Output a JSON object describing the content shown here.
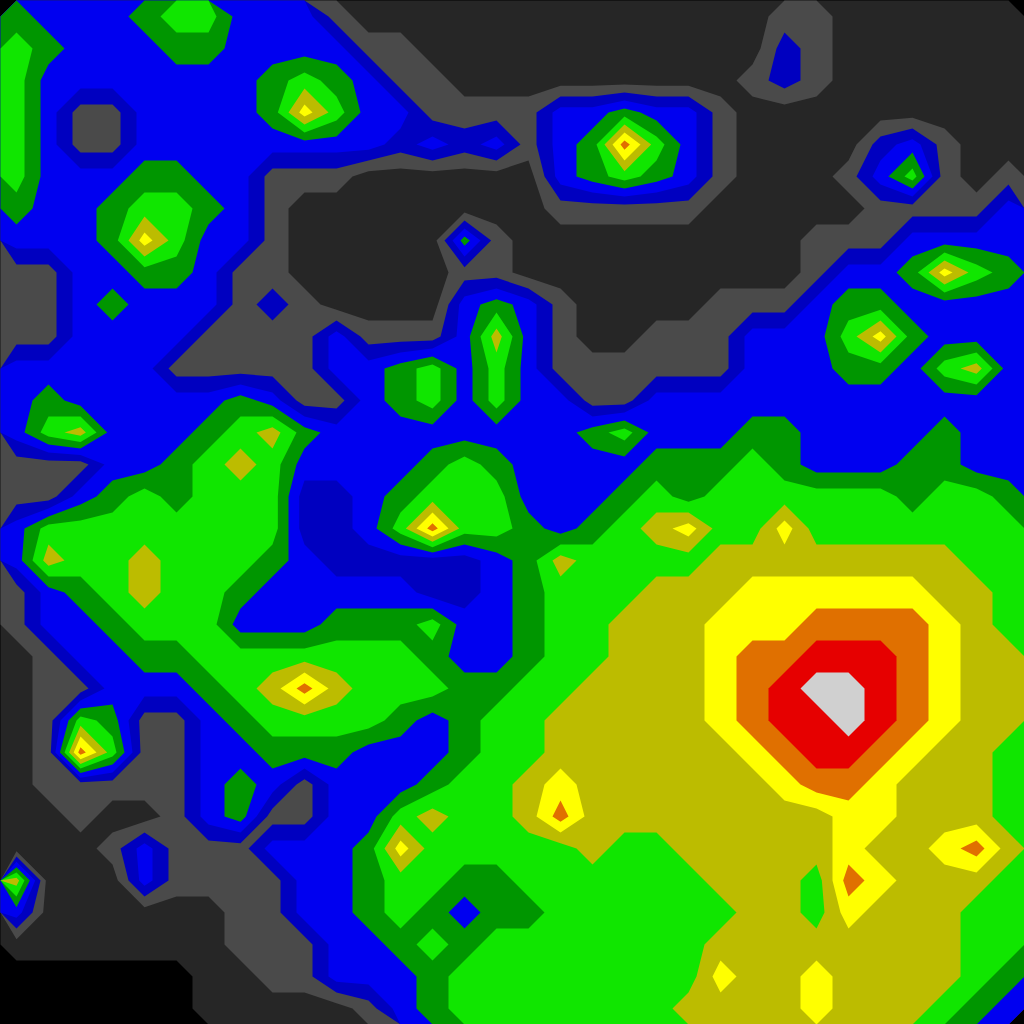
{
  "chart_data": {
    "type": "contour",
    "tick_labels": false,
    "thresholds": [
      0.5,
      1.5,
      2.5,
      3.5,
      4.5,
      5.5,
      6.5,
      7.5,
      8.5,
      9.5,
      10.5
    ],
    "colors": [
      "#000000",
      "#262626",
      "#4a4a4a",
      "#0000c0",
      "#0000f0",
      "#009600",
      "#10e600",
      "#bcbc00",
      "#ffff00",
      "#e07000",
      "#e60000",
      "#d0d0d0"
    ],
    "cells": [
      [
        5,
        4,
        4,
        4,
        5,
        6,
        6,
        4,
        4,
        4,
        2,
        1,
        1,
        1,
        1,
        1,
        1,
        1,
        1,
        1,
        1,
        1,
        1,
        1,
        2,
        2,
        1,
        1,
        1,
        1,
        1,
        1
      ],
      [
        6,
        5,
        4,
        4,
        4,
        5,
        5,
        4,
        4,
        4,
        4,
        2,
        2,
        1,
        1,
        1,
        1,
        1,
        1,
        1,
        1,
        1,
        1,
        1,
        3,
        2,
        1,
        1,
        1,
        1,
        1,
        1
      ],
      [
        6,
        4,
        4,
        4,
        4,
        4,
        4,
        4,
        5,
        6,
        5,
        4,
        2,
        2,
        1,
        1,
        1,
        1,
        1,
        1,
        1,
        1,
        1,
        2,
        3,
        2,
        1,
        1,
        1,
        1,
        1,
        1
      ],
      [
        6,
        4,
        2,
        2,
        4,
        4,
        4,
        4,
        5,
        8,
        6,
        4,
        4,
        2,
        2,
        2,
        2,
        4,
        4,
        5,
        4,
        4,
        2,
        1,
        1,
        1,
        1,
        1,
        1,
        1,
        1,
        1
      ],
      [
        6,
        4,
        2,
        2,
        4,
        4,
        4,
        4,
        4,
        4,
        4,
        4,
        3,
        4,
        3,
        4,
        2,
        4,
        5,
        9,
        6,
        4,
        2,
        1,
        1,
        1,
        1,
        3,
        4,
        2,
        1,
        1
      ],
      [
        6,
        4,
        4,
        4,
        5,
        5,
        4,
        4,
        2,
        2,
        2,
        1,
        1,
        1,
        1,
        1,
        1,
        4,
        5,
        6,
        5,
        4,
        2,
        1,
        1,
        1,
        2,
        4,
        6,
        2,
        1,
        2
      ],
      [
        5,
        4,
        4,
        5,
        6,
        6,
        5,
        4,
        2,
        1,
        1,
        1,
        1,
        1,
        1,
        1,
        1,
        2,
        2,
        2,
        2,
        2,
        1,
        1,
        1,
        1,
        1,
        2,
        2,
        2,
        2,
        4
      ],
      [
        4,
        4,
        4,
        5,
        8,
        6,
        4,
        4,
        2,
        1,
        1,
        1,
        1,
        1,
        5,
        2,
        1,
        1,
        1,
        1,
        1,
        1,
        1,
        1,
        1,
        2,
        2,
        2,
        4,
        4,
        4,
        4
      ],
      [
        2,
        2,
        4,
        4,
        5,
        5,
        4,
        2,
        2,
        1,
        1,
        1,
        1,
        1,
        2,
        2,
        1,
        1,
        1,
        1,
        1,
        1,
        1,
        1,
        1,
        2,
        4,
        4,
        5,
        8,
        6,
        5
      ],
      [
        2,
        2,
        4,
        5,
        4,
        4,
        4,
        2,
        3,
        2,
        1,
        1,
        1,
        1,
        4,
        5,
        4,
        2,
        1,
        1,
        1,
        1,
        2,
        2,
        2,
        4,
        5,
        5,
        4,
        4,
        4,
        4
      ],
      [
        2,
        2,
        4,
        4,
        4,
        4,
        2,
        2,
        2,
        2,
        4,
        2,
        2,
        2,
        4,
        7,
        4,
        2,
        1,
        1,
        2,
        2,
        2,
        4,
        4,
        4,
        6,
        8,
        5,
        4,
        4,
        4
      ],
      [
        4,
        4,
        4,
        4,
        4,
        2,
        2,
        2,
        2,
        2,
        4,
        4,
        5,
        6,
        4,
        6,
        4,
        2,
        2,
        2,
        2,
        2,
        2,
        4,
        4,
        4,
        5,
        5,
        4,
        6,
        7,
        4
      ],
      [
        4,
        5,
        4,
        4,
        4,
        4,
        4,
        5,
        4,
        2,
        2,
        4,
        5,
        6,
        4,
        6,
        4,
        4,
        2,
        2,
        4,
        4,
        4,
        4,
        4,
        4,
        4,
        4,
        4,
        4,
        4,
        4
      ],
      [
        4,
        6,
        7,
        4,
        4,
        4,
        5,
        6,
        7,
        5,
        4,
        4,
        4,
        4,
        4,
        4,
        4,
        4,
        5,
        6,
        4,
        4,
        4,
        5,
        5,
        4,
        4,
        4,
        4,
        5,
        4,
        4
      ],
      [
        2,
        2,
        2,
        4,
        4,
        5,
        6,
        7,
        6,
        4,
        4,
        4,
        4,
        5,
        6,
        5,
        4,
        4,
        4,
        4,
        5,
        5,
        5,
        6,
        5,
        4,
        4,
        4,
        5,
        5,
        4,
        4
      ],
      [
        2,
        2,
        4,
        5,
        6,
        5,
        6,
        6,
        6,
        3,
        3,
        4,
        5,
        6,
        6,
        6,
        4,
        4,
        4,
        5,
        6,
        5,
        6,
        6,
        6,
        6,
        6,
        6,
        5,
        6,
        6,
        5
      ],
      [
        4,
        6,
        6,
        6,
        6,
        6,
        6,
        6,
        6,
        3,
        3,
        4,
        6,
        9,
        6,
        6,
        5,
        4,
        5,
        6,
        7,
        8,
        6,
        6,
        8,
        6,
        6,
        6,
        6,
        6,
        6,
        6
      ],
      [
        4,
        7,
        6,
        6,
        7,
        6,
        6,
        6,
        5,
        4,
        3,
        3,
        3,
        3,
        3,
        4,
        5,
        7,
        6,
        6,
        6,
        6,
        7,
        7,
        7,
        7,
        7,
        7,
        7,
        7,
        6,
        6
      ],
      [
        2,
        4,
        5,
        6,
        7,
        6,
        6,
        5,
        4,
        4,
        4,
        4,
        4,
        3,
        3,
        4,
        5,
        6,
        6,
        6,
        7,
        7,
        7,
        8,
        8,
        8,
        8,
        8,
        8,
        7,
        7,
        6
      ],
      [
        2,
        4,
        4,
        5,
        6,
        6,
        6,
        4,
        4,
        4,
        5,
        5,
        5,
        6,
        4,
        4,
        5,
        6,
        6,
        7,
        7,
        7,
        8,
        8,
        8,
        9,
        9,
        9,
        9,
        8,
        7,
        6
      ],
      [
        1,
        2,
        4,
        4,
        5,
        5,
        6,
        6,
        6,
        6,
        6,
        6,
        6,
        5,
        4,
        4,
        5,
        6,
        6,
        7,
        7,
        7,
        8,
        9,
        9,
        10,
        10,
        10,
        9,
        8,
        7,
        7
      ],
      [
        1,
        2,
        2,
        4,
        4,
        4,
        5,
        6,
        7,
        9,
        7,
        6,
        6,
        6,
        5,
        5,
        6,
        6,
        7,
        7,
        7,
        7,
        8,
        9,
        10,
        11,
        11,
        10,
        9,
        8,
        7,
        7
      ],
      [
        1,
        2,
        6,
        5,
        2,
        2,
        4,
        5,
        6,
        6,
        6,
        6,
        5,
        4,
        5,
        6,
        6,
        7,
        7,
        7,
        7,
        7,
        8,
        9,
        10,
        10,
        11,
        10,
        9,
        8,
        7,
        7
      ],
      [
        1,
        2,
        9,
        6,
        2,
        2,
        4,
        4,
        5,
        5,
        5,
        4,
        4,
        4,
        5,
        6,
        6,
        7,
        7,
        7,
        7,
        7,
        7,
        8,
        9,
        10,
        10,
        9,
        8,
        7,
        7,
        6
      ],
      [
        1,
        2,
        2,
        2,
        2,
        2,
        4,
        5,
        4,
        2,
        4,
        4,
        4,
        5,
        6,
        6,
        7,
        8,
        7,
        7,
        7,
        7,
        7,
        7,
        8,
        9,
        9,
        8,
        7,
        7,
        7,
        6
      ],
      [
        1,
        1,
        2,
        1,
        1,
        2,
        4,
        5,
        2,
        2,
        4,
        4,
        6,
        7,
        6,
        6,
        7,
        9,
        7,
        7,
        7,
        7,
        7,
        7,
        7,
        7,
        8,
        8,
        7,
        7,
        7,
        6
      ],
      [
        1,
        1,
        1,
        2,
        4,
        2,
        2,
        2,
        4,
        4,
        4,
        5,
        8,
        6,
        6,
        6,
        6,
        6,
        7,
        6,
        6,
        7,
        7,
        7,
        7,
        7,
        8,
        7,
        7,
        8,
        9,
        7
      ],
      [
        7,
        1,
        1,
        1,
        4,
        2,
        2,
        2,
        2,
        4,
        4,
        5,
        6,
        6,
        5,
        5,
        6,
        6,
        6,
        6,
        6,
        6,
        7,
        7,
        7,
        6,
        9,
        8,
        7,
        7,
        7,
        6
      ],
      [
        4,
        1,
        1,
        1,
        1,
        1,
        1,
        2,
        2,
        4,
        4,
        5,
        6,
        5,
        4,
        5,
        5,
        6,
        6,
        6,
        6,
        6,
        6,
        7,
        7,
        6,
        8,
        7,
        7,
        7,
        6,
        6
      ],
      [
        1,
        1,
        1,
        1,
        1,
        1,
        1,
        2,
        2,
        2,
        4,
        4,
        5,
        6,
        5,
        6,
        6,
        6,
        6,
        6,
        6,
        6,
        7,
        7,
        7,
        7,
        7,
        7,
        7,
        7,
        6,
        6
      ],
      [
        0,
        0,
        0,
        0,
        0,
        0,
        1,
        1,
        2,
        2,
        4,
        4,
        4,
        5,
        6,
        6,
        6,
        6,
        6,
        6,
        6,
        6,
        8,
        7,
        7,
        8,
        7,
        7,
        7,
        7,
        6,
        5
      ],
      [
        0,
        0,
        0,
        0,
        0,
        0,
        1,
        1,
        1,
        1,
        1,
        2,
        4,
        5,
        6,
        6,
        6,
        6,
        6,
        6,
        6,
        7,
        7,
        7,
        7,
        8,
        7,
        7,
        7,
        6,
        5,
        4
      ]
    ]
  }
}
